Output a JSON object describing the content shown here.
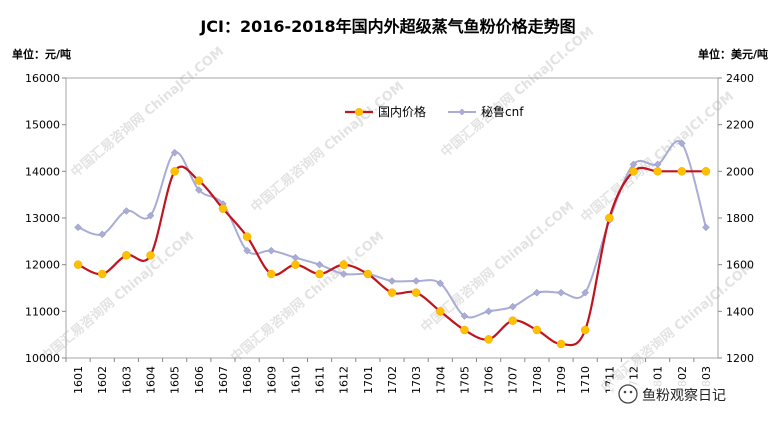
{
  "chart_data": {
    "type": "line",
    "title": "JCI：2016-2018年国内外超级蒸气鱼粉价格走势图",
    "ylabel_left": "单位：元/吨",
    "ylabel_right": "单位：美元/吨",
    "ylim_left": [
      10000,
      16000
    ],
    "ylim_right": [
      1200,
      2400
    ],
    "yticks_left": [
      "10000",
      "11000",
      "12000",
      "13000",
      "14000",
      "15000",
      "16000"
    ],
    "yticks_right": [
      "1200",
      "1400",
      "1600",
      "1800",
      "2000",
      "2200",
      "2400"
    ],
    "grid": false,
    "legend_position": "top-center",
    "categories": [
      "1601",
      "1602",
      "1603",
      "1604",
      "1605",
      "1606",
      "1607",
      "1608",
      "1609",
      "1610",
      "1611",
      "1612",
      "1701",
      "1702",
      "1703",
      "1704",
      "1705",
      "1706",
      "1707",
      "1708",
      "1709",
      "1710",
      "1711",
      "1712",
      "1801",
      "1802",
      "1803"
    ],
    "series": [
      {
        "name": "国内价格",
        "axis": "left",
        "color": "#c0141e",
        "marker_color": "#ffc000",
        "values": [
          12000,
          11800,
          12200,
          12200,
          14000,
          13800,
          13200,
          12600,
          11800,
          12000,
          11800,
          12000,
          11800,
          11400,
          11400,
          11000,
          10600,
          10400,
          10800,
          10600,
          10300,
          10600,
          13000,
          14000,
          14000,
          14000,
          14000
        ]
      },
      {
        "name": "秘鲁cnf",
        "axis": "right",
        "color": "#a9acd4",
        "marker_color": "#a9acd4",
        "values": [
          1760,
          1730,
          1830,
          1810,
          2080,
          1920,
          1860,
          1660,
          1660,
          1630,
          1600,
          1560,
          1560,
          1530,
          1530,
          1520,
          1380,
          1400,
          1420,
          1480,
          1480,
          1480,
          1790,
          2030,
          2030,
          2120,
          1760
        ]
      }
    ],
    "watermark": "中国汇易咨询网 ChinaJCI.COM",
    "source_badge": "鱼粉观察日记"
  }
}
